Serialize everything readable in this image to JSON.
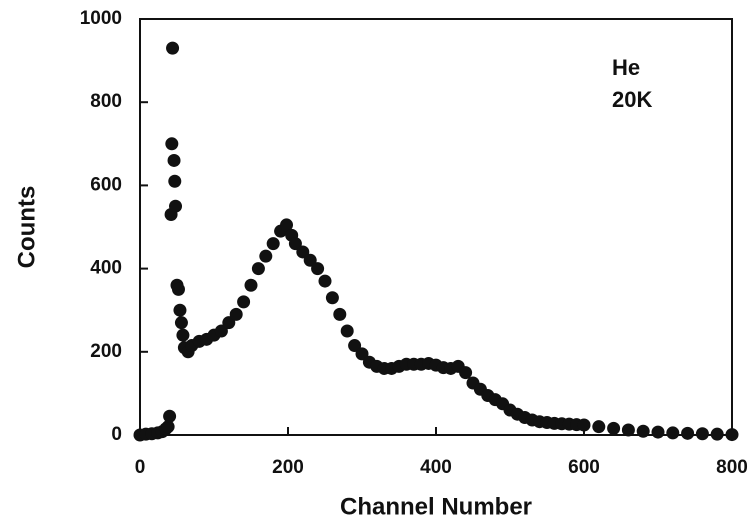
{
  "chart_data": {
    "type": "scatter",
    "xlabel": "Channel Number",
    "ylabel": "Counts",
    "annotations": [
      "He",
      "20K"
    ],
    "color": "#111111",
    "xlim": [
      0,
      800
    ],
    "xticks": [
      0,
      200,
      400,
      600,
      800
    ],
    "ylim": [
      0,
      1000
    ],
    "yticks": [
      0,
      200,
      400,
      600,
      800,
      1000
    ],
    "x": [
      0,
      8,
      16,
      24,
      30,
      35,
      38,
      40,
      42,
      43,
      44,
      46,
      47,
      48,
      50,
      52,
      54,
      56,
      58,
      60,
      65,
      70,
      80,
      90,
      100,
      110,
      120,
      130,
      140,
      150,
      160,
      170,
      180,
      190,
      198,
      205,
      210,
      220,
      230,
      240,
      250,
      260,
      270,
      280,
      290,
      300,
      310,
      320,
      330,
      340,
      350,
      360,
      370,
      380,
      390,
      400,
      410,
      420,
      430,
      440,
      450,
      460,
      470,
      480,
      490,
      500,
      510,
      520,
      530,
      540,
      550,
      560,
      570,
      580,
      590,
      600,
      620,
      640,
      660,
      680,
      700,
      720,
      740,
      760,
      780,
      800
    ],
    "values": [
      0,
      2,
      3,
      5,
      8,
      15,
      20,
      45,
      530,
      700,
      930,
      660,
      610,
      550,
      360,
      350,
      300,
      270,
      240,
      210,
      200,
      215,
      225,
      230,
      240,
      250,
      270,
      290,
      320,
      360,
      400,
      430,
      460,
      490,
      505,
      480,
      460,
      440,
      420,
      400,
      370,
      330,
      290,
      250,
      215,
      195,
      175,
      165,
      160,
      160,
      165,
      170,
      170,
      170,
      172,
      168,
      162,
      160,
      165,
      150,
      125,
      110,
      95,
      85,
      75,
      60,
      50,
      42,
      36,
      32,
      30,
      28,
      27,
      26,
      25,
      24,
      20,
      16,
      12,
      9,
      7,
      5,
      4,
      3,
      2,
      1
    ]
  }
}
